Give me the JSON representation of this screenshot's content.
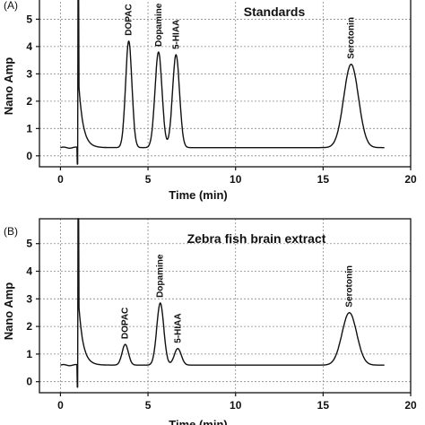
{
  "chart_data": [
    {
      "type": "line",
      "panel_label": "(A)",
      "title": "Standards",
      "xlabel": "Time (min)",
      "ylabel": "Nano Amp",
      "xlim": [
        -1.2,
        20
      ],
      "ylim": [
        -0.4,
        5.9
      ],
      "xticks": [
        0,
        5,
        10,
        15,
        20
      ],
      "yticks": [
        0,
        1,
        2,
        3,
        4,
        5
      ],
      "grid": true,
      "baseline": 0.3,
      "injection_artifact": {
        "x": 1.0,
        "top": 5.9,
        "bottom": -0.3
      },
      "peaks": [
        {
          "name": "DOPAC",
          "x": 3.9,
          "height": 4.2
        },
        {
          "name": "Dopamine",
          "x": 5.6,
          "height": 3.8
        },
        {
          "name": "5-HIAA",
          "x": 6.6,
          "height": 3.7
        },
        {
          "name": "Serotonin",
          "x": 16.6,
          "height": 3.35
        }
      ]
    },
    {
      "type": "line",
      "panel_label": "(B)",
      "title": "Zebra fish brain extract",
      "xlabel": "Time (min)",
      "ylabel": "Nano Amp",
      "xlim": [
        -1.2,
        20
      ],
      "ylim": [
        -0.4,
        5.9
      ],
      "xticks": [
        0,
        5,
        10,
        15,
        20
      ],
      "yticks": [
        0,
        1,
        2,
        3,
        4,
        5
      ],
      "grid": true,
      "baseline": 0.6,
      "injection_artifact": {
        "x": 1.0,
        "top": 5.9,
        "bottom": -0.2
      },
      "peaks": [
        {
          "name": "DOPAC",
          "x": 3.7,
          "height": 1.35
        },
        {
          "name": "Dopamine",
          "x": 5.7,
          "height": 2.85
        },
        {
          "name": "5-HIAA",
          "x": 6.7,
          "height": 1.2
        },
        {
          "name": "Serotonin",
          "x": 16.5,
          "height": 2.5
        }
      ]
    }
  ]
}
